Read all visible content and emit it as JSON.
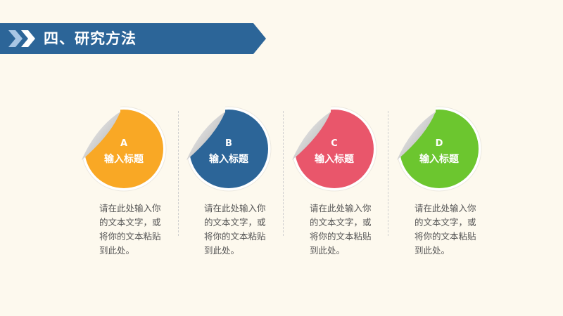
{
  "header": {
    "title": "四、研究方法",
    "icon": "double-chevron-right-icon",
    "color": "#2c6598"
  },
  "items": [
    {
      "letter": "A",
      "title": "输入标题",
      "color": "#f9a825",
      "desc": [
        "请在此处输入你",
        "的文本文字，或",
        "将你的文本粘贴",
        "到此处。"
      ]
    },
    {
      "letter": "B",
      "title": "输入标题",
      "color": "#2c6598",
      "desc": [
        "请在此处输入你",
        "的文本文字，或",
        "将你的文本粘贴",
        "到此处。"
      ]
    },
    {
      "letter": "C",
      "title": "输入标题",
      "color": "#e9566b",
      "desc": [
        "请在此处输入你",
        "的文本文字，或",
        "将你的文本粘贴",
        "到此处。"
      ]
    },
    {
      "letter": "D",
      "title": "输入标题",
      "color": "#6cc62f",
      "desc": [
        "请在此处输入你",
        "的文本文字，或",
        "将你的文本粘贴",
        "到此处。"
      ]
    }
  ]
}
